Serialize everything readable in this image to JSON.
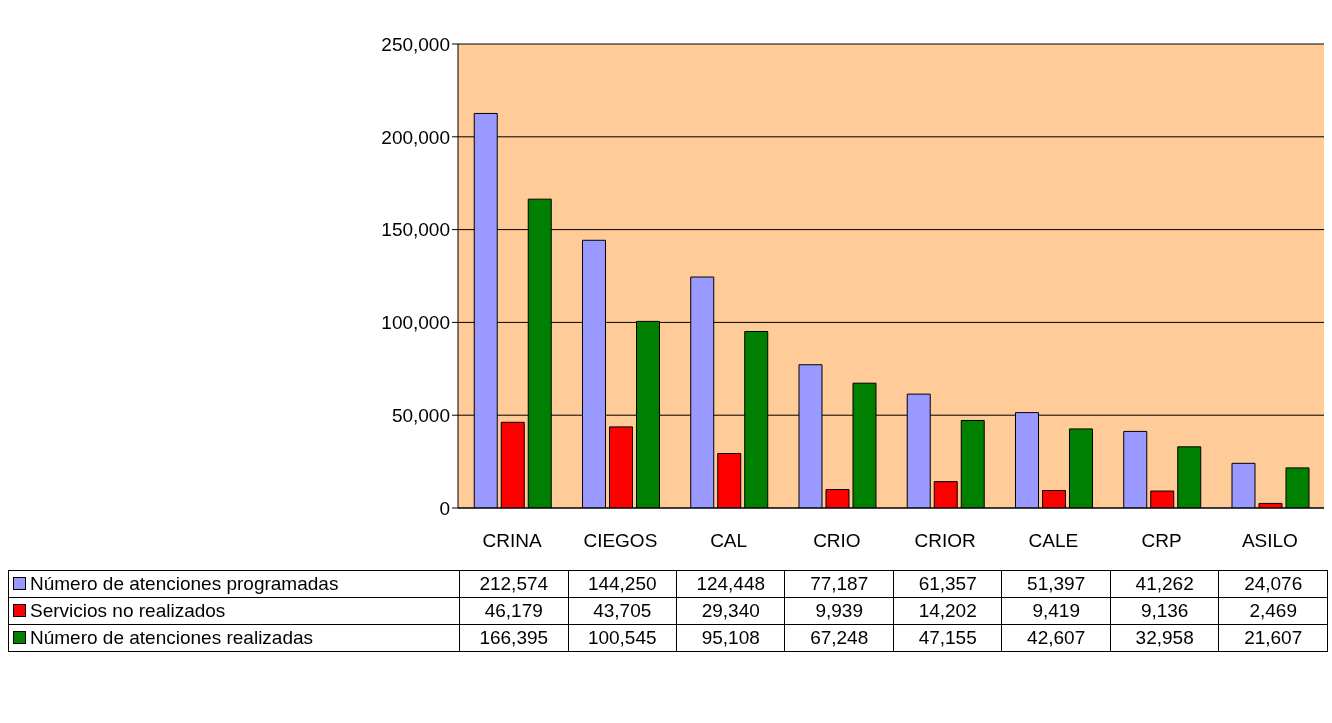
{
  "chart_data": {
    "type": "bar",
    "categories": [
      "CRINA",
      "CIEGOS",
      "CAL",
      "CRIO",
      "CRIOR",
      "CALE",
      "CRP",
      "ASILO"
    ],
    "series": [
      {
        "name": "Número de atenciones programadas",
        "color": "#9999ff",
        "values": [
          212574,
          144250,
          124448,
          77187,
          61357,
          51397,
          41262,
          24076
        ],
        "value_labels": [
          "212,574",
          "144,250",
          "124,448",
          "77,187",
          "61,357",
          "51,397",
          "41,262",
          "24,076"
        ]
      },
      {
        "name": "Servicios no realizados",
        "color": "#ff0000",
        "values": [
          46179,
          43705,
          29340,
          9939,
          14202,
          9419,
          9136,
          2469
        ],
        "value_labels": [
          "46,179",
          "43,705",
          "29,340",
          "9,939",
          "14,202",
          "9,419",
          "9,136",
          "2,469"
        ]
      },
      {
        "name": "Número de atenciones realizadas",
        "color": "#008000",
        "values": [
          166395,
          100545,
          95108,
          67248,
          47155,
          42607,
          32958,
          21607
        ],
        "value_labels": [
          "166,395",
          "100,545",
          "95,108",
          "67,248",
          "47,155",
          "42,607",
          "32,958",
          "21,607"
        ]
      }
    ],
    "ylim": [
      0,
      250000
    ],
    "yticks": [
      0,
      {
        "value": 50000,
        "label": "50,000"
      },
      {
        "value": 100000,
        "label": "100,000"
      },
      {
        "value": 150000,
        "label": "150,000"
      },
      {
        "value": 200000,
        "label": "200,000"
      },
      {
        "value": 250000,
        "label": "250,000"
      }
    ],
    "grid": "y",
    "legend": "bottom"
  }
}
